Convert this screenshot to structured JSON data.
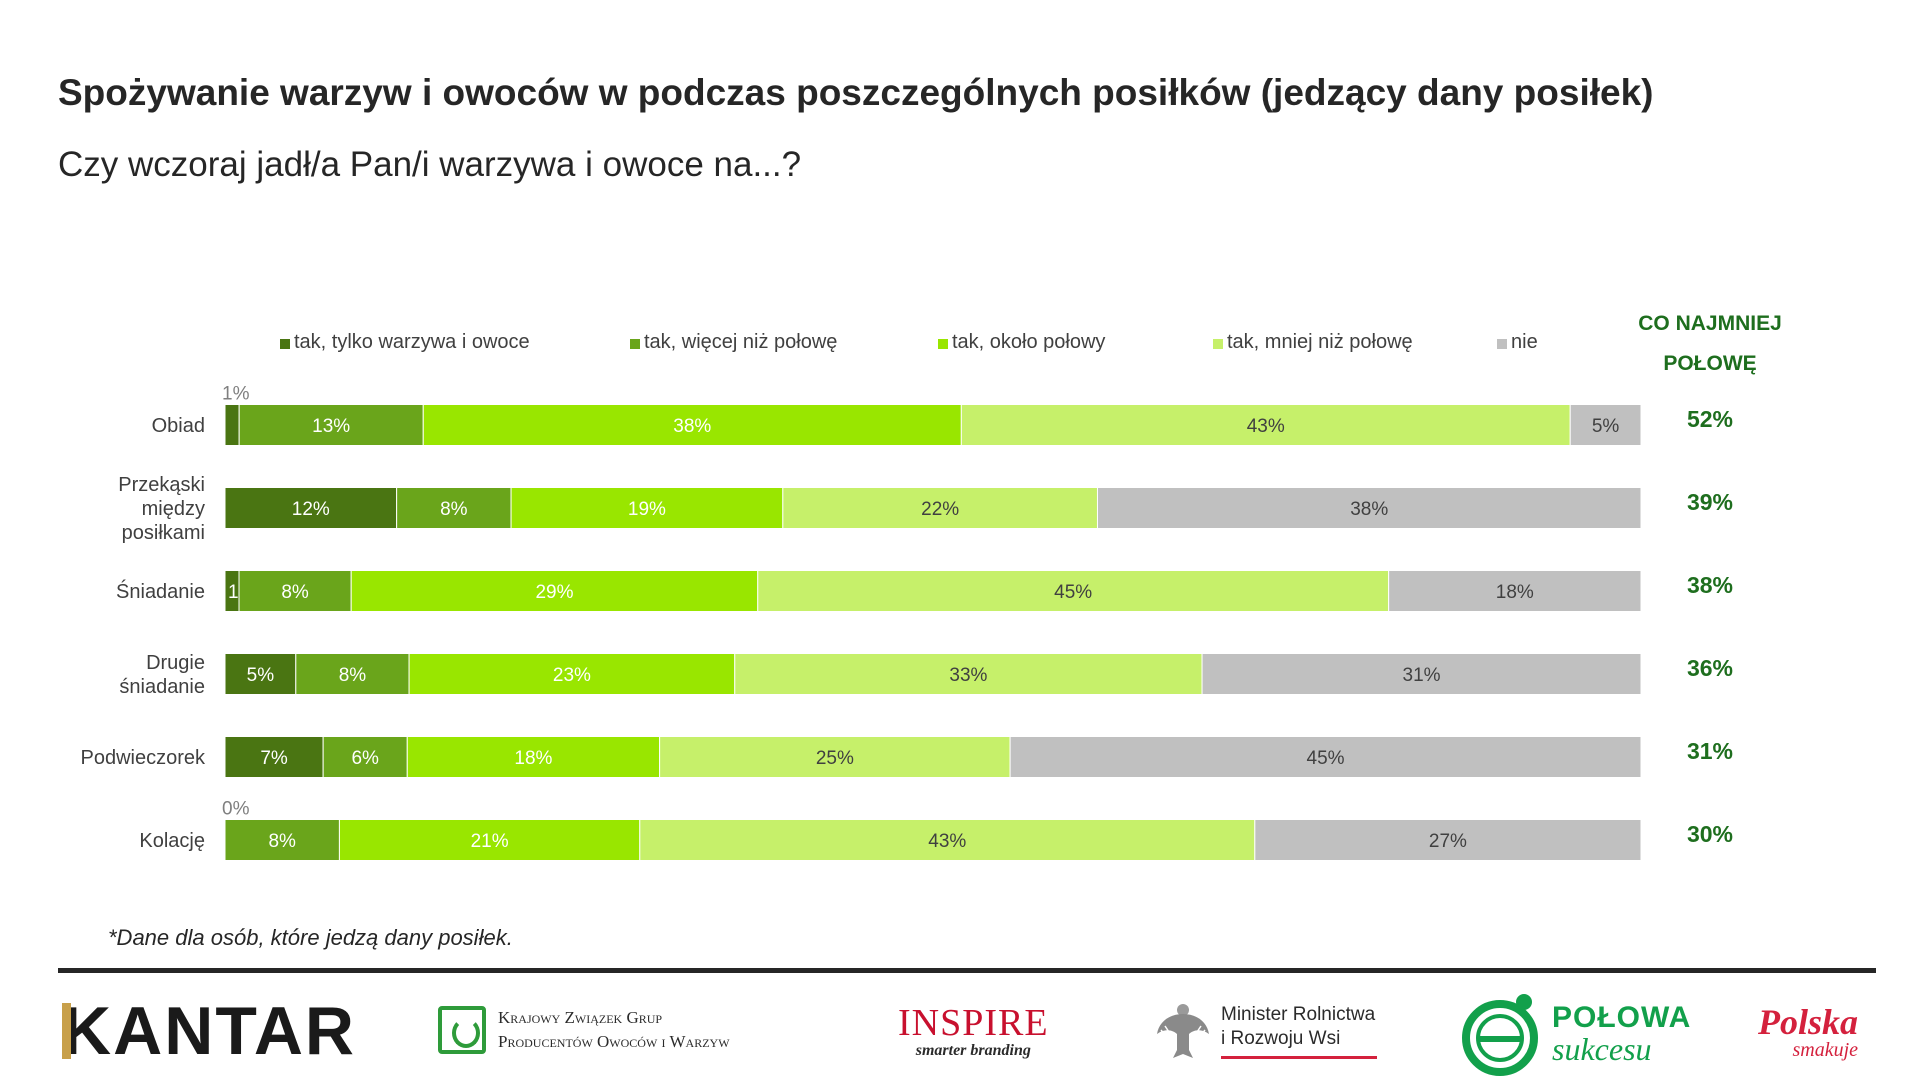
{
  "title": "Spożywanie warzyw i owoców w podczas poszczególnych posiłków (jedzący dany posiłek)",
  "subtitle": "Czy wczoraj jadł/a Pan/i warzywa i owoce na...?",
  "footnote": "*Dane dla osób, które jedzą dany posiłek.",
  "chart_data": {
    "type": "bar",
    "orientation": "horizontal-stacked-100",
    "legend_position": "top",
    "categories": [
      [
        "Obiad"
      ],
      [
        "Przekąski",
        "między",
        "posiłkami"
      ],
      [
        "Śniadanie"
      ],
      [
        "Drugie",
        "śniadanie"
      ],
      [
        "Podwieczorek"
      ],
      [
        "Kolację"
      ]
    ],
    "series": [
      {
        "name": "tak, tylko warzywa i owoce",
        "color": "#4a7512",
        "text_color": "#ffffff",
        "values": [
          1,
          12,
          1,
          5,
          7,
          0
        ],
        "labels": [
          "1%",
          "12%",
          "1%",
          "5%",
          "7%",
          "0%"
        ]
      },
      {
        "name": "tak, więcej niż połowę",
        "color": "#6aa51b",
        "text_color": "#ffffff",
        "values": [
          13,
          8,
          8,
          8,
          6,
          8
        ],
        "labels": [
          "13%",
          "8%",
          "8%",
          "8%",
          "6%",
          "8%"
        ]
      },
      {
        "name": "tak, około połowy",
        "color": "#99e600",
        "text_color": "#ffffff",
        "values": [
          38,
          19,
          29,
          23,
          18,
          21
        ],
        "labels": [
          "38%",
          "19%",
          "29%",
          "23%",
          "18%",
          "21%"
        ]
      },
      {
        "name": "tak, mniej niż połowę",
        "color": "#c6f06a",
        "text_color": "#404040",
        "values": [
          43,
          22,
          45,
          33,
          25,
          43
        ],
        "labels": [
          "43%",
          "22%",
          "45%",
          "33%",
          "25%",
          "43%"
        ]
      },
      {
        "name": "nie",
        "color": "#c0c0c0",
        "text_color": "#404040",
        "values": [
          5,
          38,
          18,
          31,
          45,
          27
        ],
        "labels": [
          "5%",
          "38%",
          "18%",
          "31%",
          "45%",
          "27%"
        ]
      }
    ],
    "summary_header": [
      "CO NAJMNIEJ",
      "POŁOWĘ"
    ],
    "summary_values": [
      "52%",
      "39%",
      "38%",
      "36%",
      "31%",
      "30%"
    ],
    "summary_color": "#1e6e1e",
    "xlim": [
      0,
      100
    ],
    "grid": false
  },
  "logos": {
    "kantar": "KANTAR",
    "kzgp_line1": "Krajowy Związek Grup",
    "kzgp_line2": "Producentów Owoców i Warzyw",
    "inspire_name": "INSPIRE",
    "inspire_tag": "smarter branding",
    "minister_line1": "Minister Rolnictwa",
    "minister_line2": "i Rozwoju Wsi",
    "polowa_line1": "POŁOWA",
    "polowa_line2": "sukcesu",
    "polska_line1": "Polska",
    "polska_line2": "smakuje",
    "icons": [
      "kantar-logo",
      "kzgp-logo-icon",
      "eagle-icon",
      "polowa-plate-icon"
    ]
  }
}
